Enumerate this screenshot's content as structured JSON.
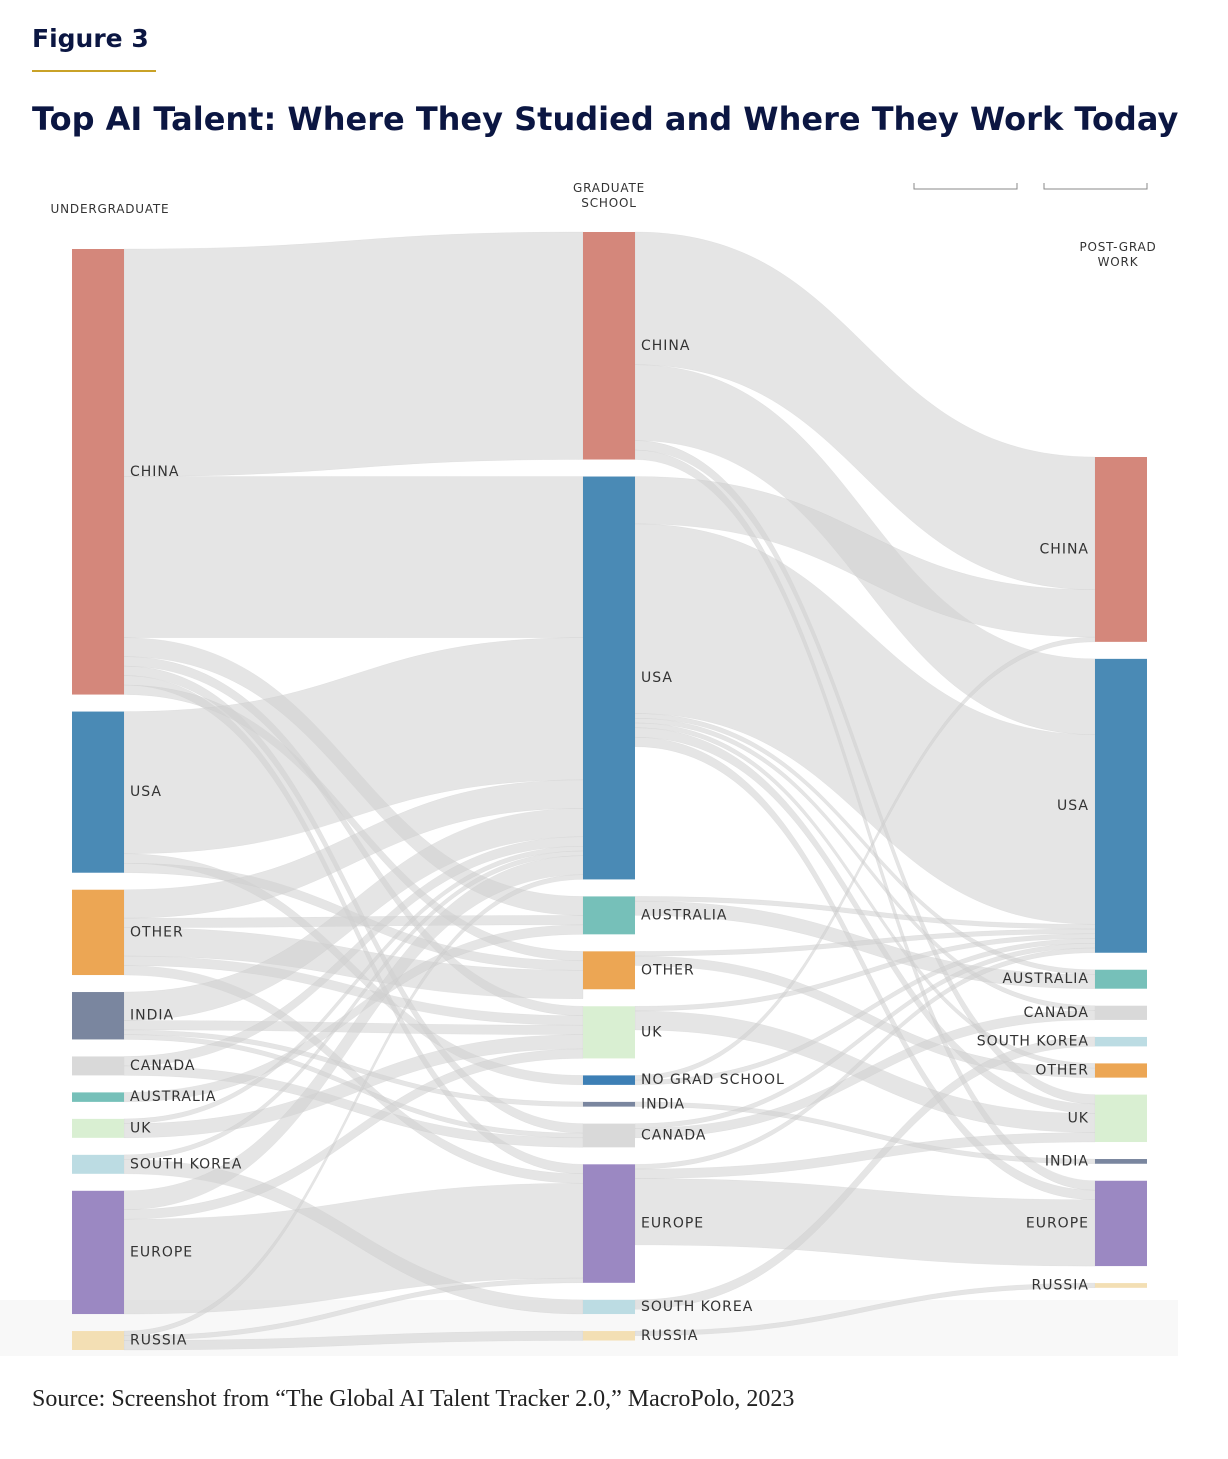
{
  "figure_label": "Figure 3",
  "chart_data": {
    "type": "sankey",
    "title": "Top AI Talent: Where They Studied and Where They Work Today",
    "link_color": "#cfcfcf",
    "columns": [
      {
        "name": "UNDERGRADUATE",
        "nodes": [
          {
            "name": "CHINA",
            "color": "#d4877b",
            "value": 47
          },
          {
            "name": "USA",
            "color": "#4a8ab5",
            "value": 17
          },
          {
            "name": "OTHER",
            "color": "#eca654",
            "value": 9
          },
          {
            "name": "INDIA",
            "color": "#7a869f",
            "value": 5
          },
          {
            "name": "CANADA",
            "color": "#d9d9d9",
            "value": 2
          },
          {
            "name": "AUSTRALIA",
            "color": "#76c0b9",
            "value": 1
          },
          {
            "name": "UK",
            "color": "#d9efd2",
            "value": 2
          },
          {
            "name": "SOUTH KOREA",
            "color": "#bcdce3",
            "value": 2
          },
          {
            "name": "EUROPE",
            "color": "#9b88c2",
            "value": 13
          },
          {
            "name": "RUSSIA",
            "color": "#f3dfb4",
            "value": 2
          }
        ]
      },
      {
        "name": "GRADUATE SCHOOL",
        "nodes": [
          {
            "name": "CHINA",
            "color": "#d4877b",
            "value": 24
          },
          {
            "name": "USA",
            "color": "#4a8ab5",
            "value": 42.5
          },
          {
            "name": "AUSTRALIA",
            "color": "#76c0b9",
            "value": 4
          },
          {
            "name": "OTHER",
            "color": "#eca654",
            "value": 4
          },
          {
            "name": "UK",
            "color": "#d9efd2",
            "value": 5.5
          },
          {
            "name": "NO GRAD SCHOOL",
            "color": "#3d7fb5",
            "value": 1
          },
          {
            "name": "INDIA",
            "color": "#7a869f",
            "value": 0.5
          },
          {
            "name": "CANADA",
            "color": "#d9d9d9",
            "value": 2.5
          },
          {
            "name": "EUROPE",
            "color": "#9b88c2",
            "value": 12.5
          },
          {
            "name": "SOUTH KOREA",
            "color": "#bcdce3",
            "value": 1.5
          },
          {
            "name": "RUSSIA",
            "color": "#f3dfb4",
            "value": 1
          }
        ]
      },
      {
        "name": "POST-GRAD WORK",
        "nodes": [
          {
            "name": "CHINA",
            "color": "#d4877b",
            "value": 19.5
          },
          {
            "name": "USA",
            "color": "#4a8ab5",
            "value": 31
          },
          {
            "name": "AUSTRALIA",
            "color": "#76c0b9",
            "value": 2
          },
          {
            "name": "CANADA",
            "color": "#d9d9d9",
            "value": 1.5
          },
          {
            "name": "SOUTH KOREA",
            "color": "#bcdce3",
            "value": 1
          },
          {
            "name": "OTHER",
            "color": "#eca654",
            "value": 1.5
          },
          {
            "name": "UK",
            "color": "#d9efd2",
            "value": 5
          },
          {
            "name": "INDIA",
            "color": "#7a869f",
            "value": 0.5
          },
          {
            "name": "EUROPE",
            "color": "#9b88c2",
            "value": 9
          },
          {
            "name": "RUSSIA",
            "color": "#f3dfb4",
            "value": 0.5
          }
        ]
      }
    ],
    "links": [
      [
        {
          "from": "CHINA",
          "to": "CHINA",
          "value": 24
        },
        {
          "from": "CHINA",
          "to": "USA",
          "value": 17
        },
        {
          "from": "CHINA",
          "to": "AUSTRALIA",
          "value": 2
        },
        {
          "from": "CHINA",
          "to": "UK",
          "value": 1
        },
        {
          "from": "CHINA",
          "to": "CANADA",
          "value": 1
        },
        {
          "from": "CHINA",
          "to": "EUROPE",
          "value": 1
        },
        {
          "from": "CHINA",
          "to": "OTHER",
          "value": 1
        },
        {
          "from": "USA",
          "to": "USA",
          "value": 15
        },
        {
          "from": "USA",
          "to": "NO GRAD SCHOOL",
          "value": 1
        },
        {
          "from": "USA",
          "to": "OTHER",
          "value": 1
        },
        {
          "from": "OTHER",
          "to": "USA",
          "value": 3
        },
        {
          "from": "OTHER",
          "to": "AUSTRALIA",
          "value": 1
        },
        {
          "from": "OTHER",
          "to": "OTHER",
          "value": 3
        },
        {
          "from": "OTHER",
          "to": "UK",
          "value": 1
        },
        {
          "from": "OTHER",
          "to": "EUROPE",
          "value": 1
        },
        {
          "from": "INDIA",
          "to": "USA",
          "value": 3
        },
        {
          "from": "INDIA",
          "to": "UK",
          "value": 1
        },
        {
          "from": "INDIA",
          "to": "INDIA",
          "value": 0.5
        },
        {
          "from": "INDIA",
          "to": "CANADA",
          "value": 0.5
        },
        {
          "from": "CANADA",
          "to": "USA",
          "value": 1
        },
        {
          "from": "CANADA",
          "to": "CANADA",
          "value": 1
        },
        {
          "from": "AUSTRALIA",
          "to": "AUSTRALIA",
          "value": 1
        },
        {
          "from": "UK",
          "to": "USA",
          "value": 0.5
        },
        {
          "from": "UK",
          "to": "UK",
          "value": 1.5
        },
        {
          "from": "SOUTH KOREA",
          "to": "USA",
          "value": 0.5
        },
        {
          "from": "SOUTH KOREA",
          "to": "SOUTH KOREA",
          "value": 1.5
        },
        {
          "from": "EUROPE",
          "to": "USA",
          "value": 2
        },
        {
          "from": "EUROPE",
          "to": "UK",
          "value": 1
        },
        {
          "from": "EUROPE",
          "to": "EUROPE",
          "value": 10
        },
        {
          "from": "RUSSIA",
          "to": "USA",
          "value": 0.5
        },
        {
          "from": "RUSSIA",
          "to": "EUROPE",
          "value": 0.5
        },
        {
          "from": "RUSSIA",
          "to": "RUSSIA",
          "value": 1
        }
      ],
      [
        {
          "from": "CHINA",
          "to": "CHINA",
          "value": 14
        },
        {
          "from": "CHINA",
          "to": "USA",
          "value": 8
        },
        {
          "from": "CHINA",
          "to": "UK",
          "value": 1
        },
        {
          "from": "CHINA",
          "to": "EUROPE",
          "value": 1
        },
        {
          "from": "USA",
          "to": "CHINA",
          "value": 5
        },
        {
          "from": "USA",
          "to": "USA",
          "value": 20
        },
        {
          "from": "USA",
          "to": "AUSTRALIA",
          "value": 0.5
        },
        {
          "from": "USA",
          "to": "CANADA",
          "value": 0.5
        },
        {
          "from": "USA",
          "to": "OTHER",
          "value": 0.5
        },
        {
          "from": "USA",
          "to": "UK",
          "value": 1
        },
        {
          "from": "USA",
          "to": "EUROPE",
          "value": 1
        },
        {
          "from": "AUSTRALIA",
          "to": "USA",
          "value": 0.5
        },
        {
          "from": "AUSTRALIA",
          "to": "AUSTRALIA",
          "value": 1.5
        },
        {
          "from": "OTHER",
          "to": "USA",
          "value": 0.5
        },
        {
          "from": "OTHER",
          "to": "OTHER",
          "value": 1
        },
        {
          "from": "UK",
          "to": "USA",
          "value": 0.5
        },
        {
          "from": "UK",
          "to": "UK",
          "value": 2
        },
        {
          "from": "NO GRAD SCHOOL",
          "to": "CHINA",
          "value": 0.5
        },
        {
          "from": "NO GRAD SCHOOL",
          "to": "USA",
          "value": 0.5
        },
        {
          "from": "INDIA",
          "to": "INDIA",
          "value": 0.5
        },
        {
          "from": "CANADA",
          "to": "USA",
          "value": 0.5
        },
        {
          "from": "CANADA",
          "to": "CANADA",
          "value": 1
        },
        {
          "from": "EUROPE",
          "to": "USA",
          "value": 0.5
        },
        {
          "from": "EUROPE",
          "to": "UK",
          "value": 1
        },
        {
          "from": "EUROPE",
          "to": "EUROPE",
          "value": 7
        },
        {
          "from": "SOUTH KOREA",
          "to": "SOUTH KOREA",
          "value": 1
        },
        {
          "from": "RUSSIA",
          "to": "RUSSIA",
          "value": 0.5
        }
      ]
    ]
  },
  "source": "Source: Screenshot from “The Global AI Talent Tracker 2.0,” MacroPolo, 2023"
}
